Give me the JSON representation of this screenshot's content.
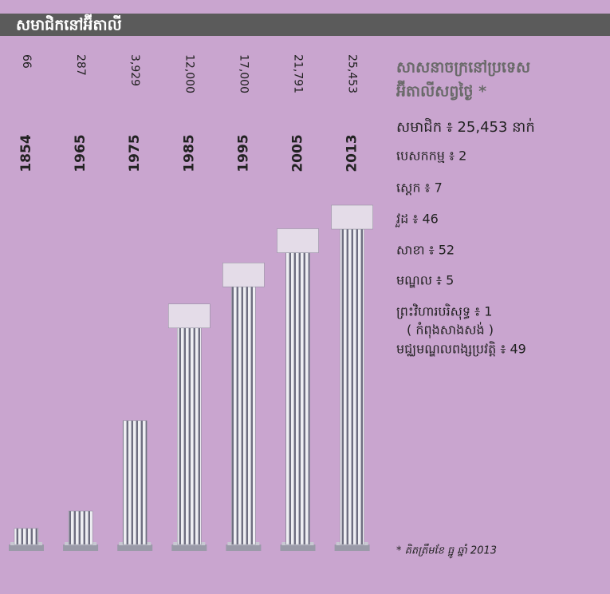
{
  "chart_data": {
    "type": "bar",
    "title": "សមាជិកនៅអ៊ីតាលី",
    "categories": [
      "1854",
      "1965",
      "1975",
      "1985",
      "1995",
      "2005",
      "2013"
    ],
    "values": [
      66,
      287,
      3929,
      12000,
      17000,
      21791,
      25453
    ],
    "value_labels": [
      "66",
      "287",
      "3,929",
      "12,000",
      "17,000",
      "21,791",
      "25,453"
    ],
    "color": "#8a8a98"
  },
  "sidebar": {
    "heading": [
      "សាសនាចក្រនៅប្រទេស",
      "អ៊ីតាលីសព្វថ្ងៃ *"
    ],
    "items": [
      "សមាជិក ៖ 25,453 នាក់",
      "បេសកកម្ម ៖ 2",
      "ស្តេក ៖ 7",
      "វួដ ៖ 46",
      "សាខា ៖ 52",
      "មណ្ឌល ៖ 5",
      "ព្រះវិហារបរិសុទ្ធ ៖ 1",
      "( កំពុងសាងសង់ )",
      "មជ្ឈមណ្ឌលពង្សប្រវត្តិ ៖ 49"
    ],
    "footnote": "* គិតត្រឹមខែ ធ្នូ ឆ្នាំ 2013"
  }
}
